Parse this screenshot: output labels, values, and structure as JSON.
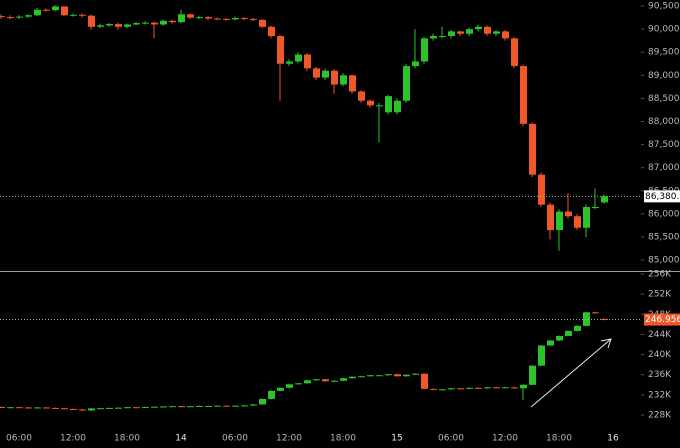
{
  "chart_data": [
    {
      "type": "candlestick",
      "up_color": "#2bc52b",
      "down_color": "#f0582a",
      "ylim": [
        84786,
        90630
      ],
      "yticks": [
        {
          "value": 90500,
          "label": "90,500.0"
        },
        {
          "value": 90000,
          "label": "90,000.0"
        },
        {
          "value": 89500,
          "label": "89,500.0"
        },
        {
          "value": 89000,
          "label": "89,000.0"
        },
        {
          "value": 88500,
          "label": "88,500.0"
        },
        {
          "value": 88000,
          "label": "88,000.0"
        },
        {
          "value": 87500,
          "label": "87,500.0"
        },
        {
          "value": 87000,
          "label": "87,000.0"
        },
        {
          "value": 86500,
          "label": "86,500.0"
        },
        {
          "value": 86000,
          "label": "86,000.0"
        },
        {
          "value": 85500,
          "label": "85,500.0"
        },
        {
          "value": 85000,
          "label": "85,000.0"
        }
      ],
      "current": {
        "value": 86380.1,
        "label": "86,380.1",
        "color": "#ffffff"
      },
      "open": [
        90280,
        90260,
        90250,
        90270,
        90300,
        90420,
        90410,
        90490,
        90300,
        90310,
        90290,
        90050,
        90080,
        90110,
        90050,
        90100,
        90130,
        90140,
        90100,
        90180,
        90150,
        90320,
        90250,
        90260,
        90230,
        90220,
        90210,
        90240,
        90220,
        90200,
        90050,
        89850,
        89250,
        89300,
        89450,
        89150,
        88950,
        89100,
        88800,
        89000,
        88650,
        88450,
        88350,
        88200,
        88200,
        88450,
        89200,
        89300,
        89800,
        89850,
        89850,
        89950,
        89900,
        90000,
        90050,
        89900,
        89950,
        89800,
        89200,
        87950,
        86850,
        86200,
        85650,
        86050,
        85950,
        85700,
        86150,
        86250,
        null
      ],
      "high": [
        90320,
        90300,
        90300,
        90330,
        90460,
        90450,
        90520,
        90500,
        90340,
        90340,
        90320,
        90120,
        90130,
        90140,
        90120,
        90160,
        90170,
        90160,
        90210,
        90200,
        90420,
        90340,
        90290,
        90280,
        90250,
        90240,
        90270,
        90260,
        90240,
        90220,
        90080,
        89880,
        89350,
        89500,
        89480,
        89180,
        89150,
        89130,
        89050,
        89020,
        88680,
        88480,
        88400,
        88580,
        88500,
        89250,
        90000,
        89830,
        89900,
        90050,
        89980,
        89970,
        90030,
        90100,
        90080,
        89980,
        89980,
        89830,
        89230,
        87980,
        86900,
        86250,
        86100,
        86450,
        86000,
        86200,
        86550,
        86420,
        null
      ],
      "low": [
        90220,
        90210,
        90220,
        90240,
        90280,
        90380,
        90380,
        90280,
        90270,
        90250,
        89990,
        90020,
        90050,
        89990,
        90020,
        90080,
        90100,
        89800,
        90070,
        90120,
        90130,
        90220,
        90220,
        90190,
        90190,
        90180,
        90190,
        90190,
        90170,
        90020,
        89800,
        88450,
        89200,
        89260,
        89100,
        88900,
        88900,
        88600,
        88760,
        88600,
        88400,
        88300,
        87550,
        88150,
        88150,
        88400,
        89150,
        89250,
        89750,
        89800,
        89800,
        89850,
        89850,
        89950,
        89850,
        89850,
        89750,
        89150,
        87900,
        86800,
        86150,
        85450,
        85200,
        85900,
        85650,
        85500,
        86100,
        86220,
        null
      ],
      "close": [
        90260,
        90250,
        90270,
        90300,
        90420,
        90410,
        90490,
        90300,
        90310,
        90290,
        90050,
        90080,
        90110,
        90050,
        90100,
        90130,
        90140,
        90100,
        90180,
        90150,
        90320,
        90250,
        90260,
        90230,
        90220,
        90210,
        90240,
        90220,
        90200,
        90050,
        89850,
        89250,
        89300,
        89450,
        89150,
        88950,
        89100,
        88800,
        89000,
        88650,
        88450,
        88350,
        88350,
        88550,
        88450,
        89200,
        89300,
        89800,
        89850,
        89850,
        89950,
        89900,
        90000,
        90050,
        89900,
        89950,
        89800,
        89200,
        87950,
        86850,
        86200,
        85650,
        86050,
        85950,
        85700,
        86150,
        86150,
        86380.1,
        null
      ]
    },
    {
      "type": "candlestick",
      "up_color": "#2bc52b",
      "down_color": "#f0582a",
      "categories": [
        null,
        null,
        "06:00",
        null,
        null,
        null,
        null,
        null,
        "12:00",
        null,
        null,
        null,
        null,
        null,
        "18:00",
        null,
        null,
        null,
        null,
        null,
        "14",
        null,
        null,
        null,
        null,
        null,
        "06:00",
        null,
        null,
        null,
        null,
        null,
        "12:00",
        null,
        null,
        null,
        null,
        null,
        "18:00",
        null,
        null,
        null,
        null,
        null,
        "15",
        null,
        null,
        null,
        null,
        null,
        "06:00",
        null,
        null,
        null,
        null,
        null,
        "12:00",
        null,
        null,
        null,
        null,
        null,
        "18:00",
        null,
        null,
        null,
        null,
        null,
        "16"
      ],
      "ylim": [
        225420,
        256400
      ],
      "yticks": [
        {
          "value": 256000,
          "label": "256K"
        },
        {
          "value": 252000,
          "label": "252K"
        },
        {
          "value": 248000,
          "label": "248K"
        },
        {
          "value": 244000,
          "label": "244K"
        },
        {
          "value": 240000,
          "label": "240K"
        },
        {
          "value": 236000,
          "label": "236K"
        },
        {
          "value": 232000,
          "label": "232K"
        },
        {
          "value": 228000,
          "label": "228K"
        }
      ],
      "current": {
        "value": 246956,
        "label": "246.956K",
        "color": "#f0582a"
      },
      "open": [
        229600,
        229500,
        229550,
        229500,
        229450,
        229500,
        229400,
        229350,
        229200,
        229100,
        228900,
        229300,
        229350,
        229400,
        229450,
        229550,
        229500,
        229600,
        229650,
        229700,
        229750,
        229700,
        229750,
        229800,
        229800,
        229850,
        229800,
        229850,
        229900,
        230100,
        231200,
        232800,
        233400,
        234100,
        234300,
        234900,
        235100,
        234700,
        234800,
        235300,
        235600,
        235700,
        235900,
        235900,
        236100,
        235700,
        236000,
        236200,
        233200,
        233000,
        233100,
        233300,
        233200,
        233400,
        233300,
        233500,
        233400,
        233500,
        233300,
        234000,
        237800,
        241800,
        242800,
        243700,
        244700,
        245700,
        248400,
        247100,
        null
      ],
      "high": [
        229700,
        229650,
        229650,
        229600,
        229600,
        229600,
        229500,
        229450,
        229300,
        229200,
        229400,
        229450,
        229500,
        229550,
        229650,
        229650,
        229700,
        229750,
        229800,
        229850,
        229850,
        229850,
        229900,
        229900,
        229950,
        229950,
        229950,
        230000,
        230200,
        231300,
        232900,
        233500,
        234200,
        234400,
        235000,
        235200,
        235200,
        234900,
        235400,
        235700,
        235800,
        236000,
        236000,
        236200,
        236200,
        236100,
        236300,
        236300,
        233300,
        233200,
        233400,
        233400,
        233500,
        233500,
        233600,
        233600,
        233600,
        233600,
        234100,
        237900,
        241900,
        242900,
        243800,
        244800,
        245800,
        248500,
        248500,
        247200,
        null
      ],
      "low": [
        229400,
        229400,
        229400,
        229350,
        229350,
        229300,
        229250,
        229100,
        229000,
        228800,
        228800,
        229200,
        229250,
        229300,
        229350,
        229400,
        229400,
        229500,
        229550,
        229600,
        229600,
        229600,
        229650,
        229700,
        229700,
        229700,
        229700,
        229750,
        229800,
        230000,
        231100,
        232700,
        233300,
        234000,
        234200,
        234800,
        234600,
        234600,
        234700,
        235200,
        235500,
        235600,
        235800,
        235800,
        235600,
        235600,
        235900,
        233100,
        232900,
        232900,
        233000,
        233100,
        233100,
        233200,
        233200,
        233300,
        233300,
        233200,
        231000,
        233900,
        237700,
        241700,
        242700,
        243600,
        244600,
        245600,
        248100,
        246800,
        null
      ],
      "close": [
        229500,
        229550,
        229500,
        229450,
        229500,
        229400,
        229350,
        229200,
        229100,
        228900,
        229300,
        229350,
        229400,
        229450,
        229550,
        229500,
        229600,
        229650,
        229700,
        229750,
        229700,
        229750,
        229800,
        229800,
        229850,
        229800,
        229850,
        229900,
        230100,
        231200,
        232800,
        233400,
        234100,
        234300,
        234900,
        235100,
        234700,
        234800,
        235300,
        235600,
        235700,
        235900,
        235900,
        236100,
        235700,
        236000,
        236200,
        233200,
        233000,
        233100,
        233300,
        233200,
        233400,
        233300,
        233500,
        233400,
        233500,
        233300,
        234000,
        237800,
        241800,
        242800,
        243700,
        244700,
        245700,
        248400,
        248200,
        246956,
        null
      ]
    }
  ]
}
